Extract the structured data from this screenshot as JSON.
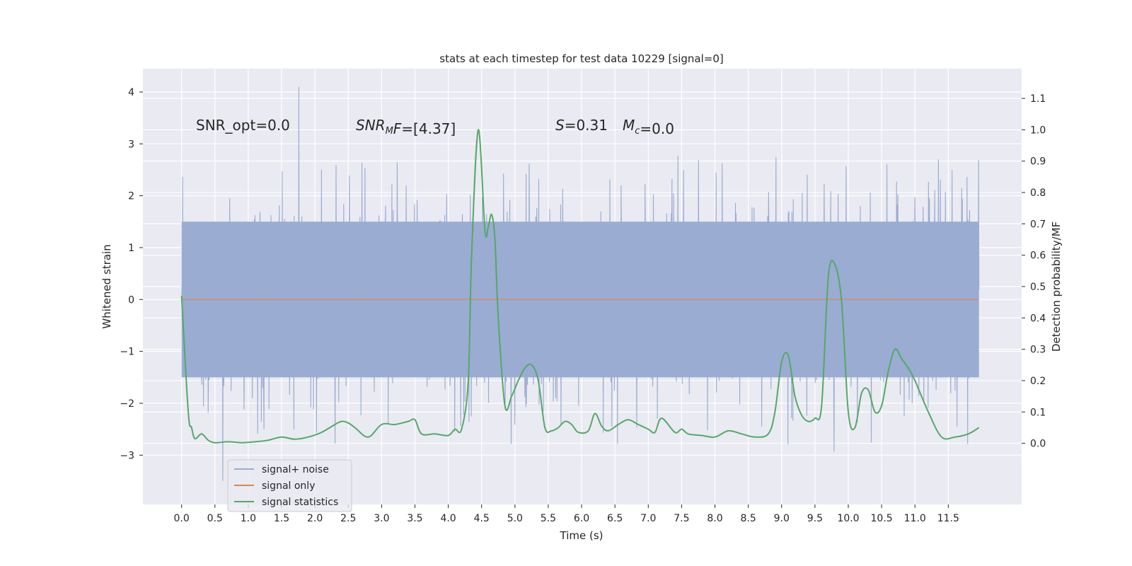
{
  "chart_data": {
    "type": "line",
    "title": "stats at each timestep for test data 10229 [signal=0]",
    "xlabel": "Time (s)",
    "ylabel": "Whitened strain",
    "y2label": "Detection probability/MF",
    "xlim": [
      -0.58,
      12.6
    ],
    "ylim": [
      -3.95,
      4.45
    ],
    "y2lim": [
      -0.195,
      1.195
    ],
    "x_ticks": [
      "0.0",
      "0.5",
      "1.0",
      "1.5",
      "2.0",
      "2.5",
      "3.0",
      "3.5",
      "4.0",
      "4.5",
      "5.0",
      "5.5",
      "6.0",
      "6.5",
      "7.0",
      "7.5",
      "8.0",
      "8.5",
      "9.0",
      "9.5",
      "10.0",
      "10.5",
      "11.0",
      "11.5"
    ],
    "y_ticks": [
      -3,
      -2,
      -1,
      0,
      1,
      2,
      3,
      4
    ],
    "y2_ticks": [
      "0.0",
      "0.1",
      "0.2",
      "0.3",
      "0.4",
      "0.5",
      "0.6",
      "0.7",
      "0.8",
      "0.9",
      "1.0",
      "1.1"
    ],
    "grid": true,
    "legend_position": "lower-left",
    "annotations": [
      {
        "text": "SNR_opt=0.0"
      },
      {
        "parts": [
          {
            "t": "SNR",
            "i": true
          },
          {
            "t": "M",
            "i": true,
            "sub": true
          },
          {
            "t": "F",
            "i": true
          },
          {
            "t": "=[4.37]",
            "i": false
          }
        ]
      },
      {
        "parts": [
          {
            "t": "S",
            "i": true
          },
          {
            "t": "=0.31",
            "i": false
          }
        ]
      },
      {
        "parts": [
          {
            "t": "M",
            "i": true
          },
          {
            "t": "c",
            "i": true,
            "sub": true
          },
          {
            "t": "=0.0",
            "i": false
          }
        ]
      }
    ],
    "series": [
      {
        "name": "signal+ noise",
        "color": "#9aacd1",
        "axis": "left",
        "kind": "dense-noise",
        "x_range": [
          0.0,
          11.96
        ],
        "core_band": [
          -1.5,
          1.5
        ],
        "typical_peaks": [
          -2.7,
          2.3
        ],
        "max": 4.1,
        "min": -3.5
      },
      {
        "name": "signal only",
        "color": "#dd8452",
        "axis": "left",
        "x": [
          0.0,
          11.96
        ],
        "y": [
          0.0,
          0.0
        ]
      },
      {
        "name": "signal statistics",
        "color": "#55a868",
        "axis": "right",
        "x": [
          0.0,
          0.1,
          0.15,
          0.2,
          0.3,
          0.4,
          0.5,
          0.7,
          0.9,
          1.1,
          1.3,
          1.5,
          1.7,
          1.9,
          2.1,
          2.3,
          2.4,
          2.5,
          2.6,
          2.8,
          3.0,
          3.2,
          3.4,
          3.5,
          3.6,
          3.8,
          4.0,
          4.1,
          4.2,
          4.3,
          4.35,
          4.45,
          4.55,
          4.6,
          4.65,
          4.7,
          4.75,
          4.85,
          4.95,
          5.05,
          5.15,
          5.25,
          5.35,
          5.45,
          5.55,
          5.65,
          5.75,
          5.85,
          5.95,
          6.1,
          6.2,
          6.3,
          6.4,
          6.55,
          6.7,
          6.85,
          7.0,
          7.1,
          7.2,
          7.4,
          7.5,
          7.6,
          7.8,
          8.0,
          8.2,
          8.4,
          8.6,
          8.8,
          8.9,
          9.0,
          9.1,
          9.2,
          9.3,
          9.4,
          9.5,
          9.6,
          9.7,
          9.8,
          9.9,
          10.0,
          10.1,
          10.2,
          10.3,
          10.4,
          10.5,
          10.6,
          10.7,
          10.8,
          10.9,
          11.0,
          11.2,
          11.4,
          11.6,
          11.8,
          11.96
        ],
        "y": [
          0.47,
          0.1,
          0.05,
          0.015,
          0.03,
          0.01,
          0.002,
          0.005,
          0.002,
          0.005,
          0.01,
          0.02,
          0.013,
          0.02,
          0.035,
          0.06,
          0.07,
          0.065,
          0.05,
          0.02,
          0.06,
          0.06,
          0.07,
          0.075,
          0.03,
          0.03,
          0.025,
          0.045,
          0.045,
          0.2,
          0.6,
          1.0,
          0.68,
          0.69,
          0.73,
          0.65,
          0.4,
          0.12,
          0.15,
          0.2,
          0.24,
          0.25,
          0.2,
          0.05,
          0.04,
          0.05,
          0.07,
          0.06,
          0.035,
          0.04,
          0.095,
          0.055,
          0.04,
          0.06,
          0.075,
          0.06,
          0.045,
          0.035,
          0.08,
          0.035,
          0.045,
          0.03,
          0.025,
          0.02,
          0.04,
          0.03,
          0.02,
          0.03,
          0.1,
          0.26,
          0.28,
          0.15,
          0.09,
          0.07,
          0.08,
          0.12,
          0.53,
          0.57,
          0.45,
          0.1,
          0.05,
          0.16,
          0.17,
          0.1,
          0.12,
          0.23,
          0.3,
          0.27,
          0.24,
          0.2,
          0.1,
          0.02,
          0.02,
          0.03,
          0.05
        ]
      }
    ]
  }
}
